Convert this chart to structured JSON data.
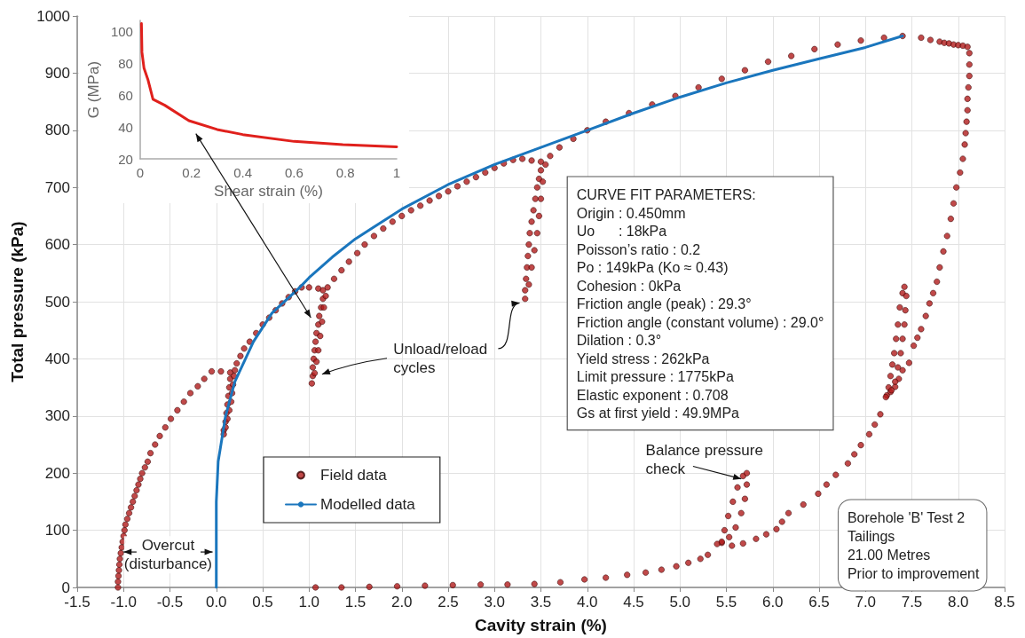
{
  "chart_data": [
    {
      "type": "scatter",
      "xlabel": "Cavity strain (%)",
      "ylabel": "Total pressure (kPa)",
      "xlim": [
        -1.5,
        8.5
      ],
      "xticks": [
        -1.5,
        {
          "value": -1,
          "label": "-1.0"
        },
        -0.5,
        {
          "value": 0,
          "label": "0.0"
        },
        0.5,
        {
          "value": 1,
          "label": "1.0"
        },
        1.5,
        {
          "value": 2,
          "label": "2.0"
        },
        2.5,
        {
          "value": 3,
          "label": "3.0"
        },
        3.5,
        {
          "value": 4,
          "label": "4.0"
        },
        4.5,
        {
          "value": 5,
          "label": "5.0"
        },
        5.5,
        {
          "value": 6,
          "label": "6.0"
        },
        6.5,
        {
          "value": 7,
          "label": "7.0"
        },
        7.5,
        {
          "value": 8,
          "label": "8.0"
        },
        8.5
      ],
      "ylim": [
        0,
        1000
      ],
      "yticks": [
        0,
        100,
        200,
        300,
        400,
        500,
        600,
        700,
        800,
        900,
        1000
      ],
      "grid": true,
      "legend": "bottom",
      "series": [
        {
          "name": "Field data",
          "marker": "circle",
          "color": "#b01c1c",
          "x": [
            -1.06,
            -1.06,
            -1.055,
            -1.05,
            -1.045,
            -1.04,
            -1.03,
            -1.02,
            -1.01,
            -1.0,
            -0.99,
            -0.98,
            -0.96,
            -0.94,
            -0.92,
            -0.9,
            -0.88,
            -0.86,
            -0.84,
            -0.82,
            -0.8,
            -0.77,
            -0.74,
            -0.71,
            -0.66,
            -0.61,
            -0.55,
            -0.49,
            -0.42,
            -0.35,
            -0.28,
            -0.2,
            -0.13,
            -0.05,
            0.05,
            0.15,
            0.15,
            0.14,
            0.13,
            0.12,
            0.11,
            0.1,
            0.08,
            0.08,
            0.1,
            0.12,
            0.14,
            0.16,
            0.17,
            0.18,
            0.19,
            0.2,
            0.22,
            0.26,
            0.3,
            0.36,
            0.43,
            0.5,
            0.57,
            0.64,
            0.71,
            0.78,
            0.85,
            0.92,
            1.0,
            1.1,
            1.15,
            1.15,
            1.13,
            1.11,
            1.1,
            1.08,
            1.07,
            1.06,
            1.05,
            1.04,
            1.04,
            1.03,
            1.06,
            1.08,
            1.1,
            1.12,
            1.14,
            1.16,
            1.18,
            1.2,
            1.27,
            1.35,
            1.43,
            1.52,
            1.6,
            1.7,
            1.8,
            1.9,
            2.0,
            2.1,
            2.2,
            2.3,
            2.4,
            2.5,
            2.6,
            2.7,
            2.8,
            2.9,
            3.0,
            3.1,
            3.2,
            3.3,
            3.4,
            3.5,
            3.5,
            3.48,
            3.46,
            3.44,
            3.42,
            3.4,
            3.38,
            3.37,
            3.36,
            3.35,
            3.34,
            3.33,
            3.33,
            3.37,
            3.4,
            3.43,
            3.46,
            3.48,
            3.5,
            3.52,
            3.55,
            3.6,
            3.7,
            3.85,
            4.0,
            4.2,
            4.45,
            4.7,
            4.95,
            5.2,
            5.45,
            5.7,
            5.95,
            6.2,
            6.45,
            6.7,
            6.95,
            7.2,
            7.4,
            7.6,
            7.7,
            7.8,
            7.85,
            7.9,
            7.95,
            8.0,
            8.05,
            8.1,
            8.12,
            8.12,
            8.12,
            8.11,
            8.1,
            8.1,
            8.09,
            8.08,
            8.07,
            8.05,
            8.02,
            7.98,
            7.95,
            7.92,
            7.88,
            7.84,
            7.8,
            7.77,
            7.73,
            7.69,
            7.65,
            7.6,
            7.56,
            7.52,
            7.47,
            7.4,
            7.36,
            7.32,
            7.27,
            7.23,
            7.25,
            7.27,
            7.29,
            7.31,
            7.33,
            7.35,
            7.37,
            7.4,
            7.42,
            7.44,
            7.43,
            7.42,
            7.4,
            7.38,
            7.35,
            7.32,
            7.28,
            7.22,
            7.16,
            7.1,
            7.04,
            6.95,
            6.88,
            6.81,
            6.68,
            6.58,
            6.49,
            6.33,
            6.17,
            6.1,
            6.04,
            5.93,
            5.82,
            5.68,
            5.56,
            5.45,
            5.48,
            5.52,
            5.57,
            5.62,
            5.68,
            5.72,
            5.72,
            5.7,
            5.66,
            5.6,
            5.53,
            5.45,
            5.4,
            5.3,
            5.22,
            5.09,
            4.96,
            4.8,
            4.63,
            4.43,
            4.2,
            3.97,
            3.71,
            3.43,
            3.14,
            2.85,
            2.55,
            2.25,
            1.95,
            1.65,
            1.35,
            1.07
          ],
          "values": [
            0,
            10,
            20,
            30,
            40,
            50,
            60,
            70,
            80,
            90,
            100,
            110,
            120,
            130,
            140,
            150,
            160,
            170,
            180,
            190,
            200,
            210,
            220,
            235,
            250,
            265,
            280,
            295,
            310,
            325,
            340,
            352,
            365,
            378,
            378,
            376,
            365,
            350,
            335,
            320,
            305,
            290,
            275,
            268,
            280,
            295,
            310,
            325,
            340,
            355,
            370,
            380,
            392,
            405,
            418,
            430,
            445,
            460,
            472,
            485,
            497,
            508,
            518,
            525,
            525,
            523,
            520,
            505,
            490,
            475,
            460,
            445,
            430,
            415,
            400,
            385,
            370,
            357,
            375,
            395,
            415,
            440,
            465,
            490,
            510,
            525,
            540,
            555,
            570,
            585,
            600,
            615,
            628,
            640,
            650,
            660,
            668,
            677,
            685,
            693,
            702,
            710,
            718,
            726,
            734,
            742,
            748,
            750,
            747,
            745,
            730,
            715,
            700,
            680,
            660,
            640,
            620,
            600,
            580,
            560,
            540,
            520,
            505,
            530,
            560,
            590,
            620,
            650,
            680,
            710,
            740,
            755,
            770,
            785,
            800,
            815,
            830,
            845,
            860,
            875,
            890,
            905,
            920,
            930,
            942,
            950,
            957,
            962,
            965,
            962,
            958,
            955,
            953,
            952,
            950,
            949,
            948,
            946,
            935,
            915,
            895,
            875,
            855,
            835,
            815,
            795,
            775,
            750,
            726,
            700,
            672,
            645,
            615,
            588,
            560,
            535,
            515,
            497,
            475,
            452,
            437,
            423,
            393,
            380,
            365,
            351,
            342,
            336,
            350,
            370,
            390,
            410,
            435,
            460,
            490,
            515,
            526,
            510,
            485,
            460,
            435,
            410,
            385,
            360,
            345,
            333,
            303,
            285,
            268,
            249,
            233,
            217,
            197,
            180,
            164,
            145,
            130,
            115,
            102,
            93,
            85,
            77,
            73,
            78,
            100,
            125,
            150,
            175,
            195,
            200,
            180,
            155,
            130,
            105,
            88,
            80,
            76,
            57,
            50,
            43,
            37,
            31,
            26,
            22,
            17,
            14,
            9,
            6,
            5,
            5,
            4,
            3,
            2,
            1,
            0,
            0
          ]
        },
        {
          "name": "Modelled data",
          "type": "line",
          "marker": "none",
          "line_style": "solid",
          "color": "#1a76bd",
          "x": [
            0,
            0,
            0.02,
            0.1,
            0.2,
            0.4,
            0.6,
            0.9,
            1.0,
            1.25,
            1.5,
            2.0,
            2.5,
            3.0,
            3.5,
            4.0,
            4.5,
            5.0,
            5.5,
            6.0,
            6.5,
            7.0,
            7.4
          ],
          "values": [
            0,
            150,
            220,
            300,
            360,
            430,
            480,
            525,
            542,
            578,
            610,
            662,
            705,
            740,
            770,
            800,
            830,
            858,
            883,
            905,
            925,
            945,
            965
          ]
        }
      ],
      "annotations": [
        "Overcut\n(disturbance)",
        "Unload/reload\ncycles",
        "Balance pressure\ncheck",
        "CURVE FIT PARAMETERS:\nOrigin : 0.450mm\nUo      : 18kPa\nPoisson’s ratio : 0.2\nPo : 149kPa (Ko ≈ 0.43)\nCohesion : 0kPa\nFriction angle (peak) : 29.3°\nFriction angle (constant volume) : 29.0°\nDilation : 0.3°\nYield stress : 262kPa\nLimit pressure : 1775kPa\nElastic exponent : 0.708\nGs at first yield : 49.9MPa",
        "Borehole 'B' Test 2\nTailings\n21.00 Metres\nPrior to improvement"
      ]
    },
    {
      "type": "line",
      "xlabel": "Shear strain (%)",
      "ylabel": "G (MPa)",
      "xlim": [
        0,
        1
      ],
      "xticks": [
        0,
        0.2,
        0.4,
        0.6,
        0.8,
        1
      ],
      "ylim": [
        20,
        107
      ],
      "yticks": [
        20,
        40,
        60,
        80,
        100
      ],
      "grid": false,
      "legend": false,
      "series": [
        {
          "color": "#e0201c",
          "marker": "none",
          "line_style": "solid",
          "x": [
            0.005,
            0.007,
            0.015,
            0.03,
            0.05,
            0.096,
            0.19,
            0.3,
            0.4,
            0.6,
            0.79,
            1.0
          ],
          "values": [
            105,
            87,
            77,
            70,
            57.5,
            53.7,
            44,
            38.5,
            35.3,
            31,
            29,
            27.6
          ]
        }
      ]
    }
  ]
}
